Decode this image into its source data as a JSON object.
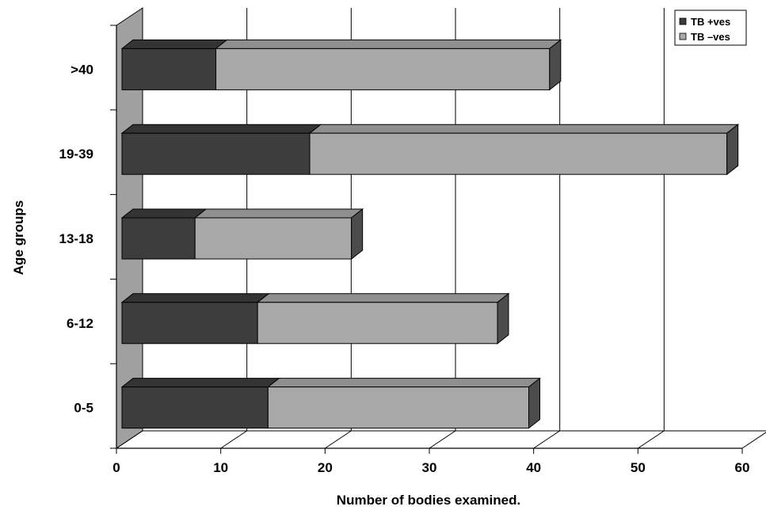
{
  "chart_data": {
    "type": "bar",
    "orientation": "horizontal",
    "stacked": true,
    "three_d": true,
    "categories": [
      "0-5",
      "6-12",
      "13-18",
      "19-39",
      ">40"
    ],
    "series": [
      {
        "name": "TB +ves",
        "values": [
          14,
          13,
          7,
          18,
          9
        ],
        "color": "#3d3d3d"
      },
      {
        "name": "TB –ves",
        "values": [
          25,
          23,
          15,
          40,
          32
        ],
        "color": "#a8a8a8"
      }
    ],
    "xlabel": "Number of bodies examined.",
    "ylabel": "Age groups",
    "xlim": [
      0,
      60
    ],
    "xticks": [
      "0",
      "10",
      "20",
      "30",
      "40",
      "50",
      "60"
    ],
    "grid": true,
    "legend_position": "top-right"
  }
}
